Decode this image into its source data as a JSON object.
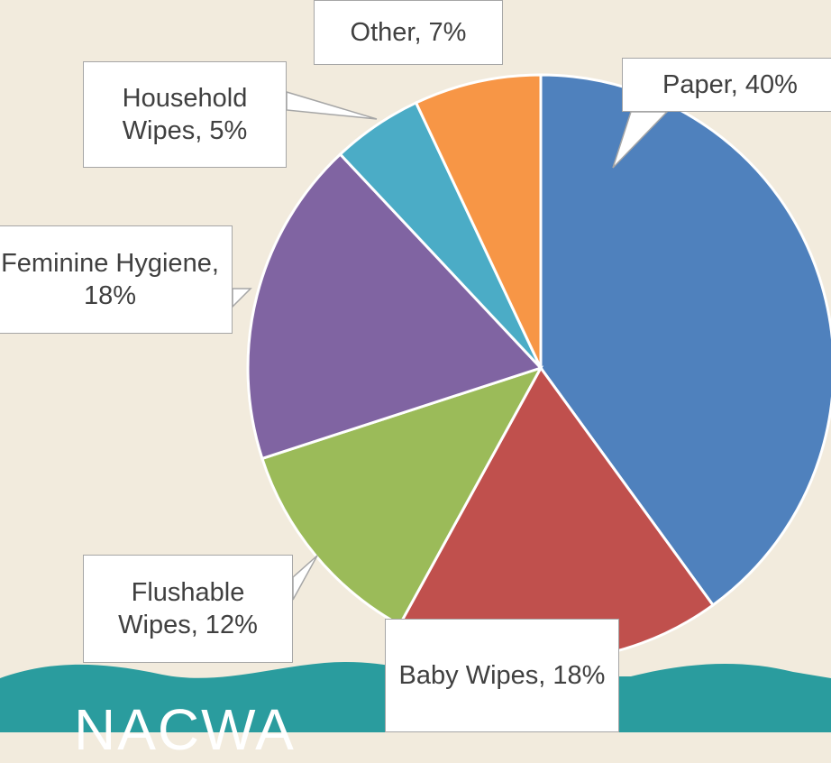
{
  "chart_data": {
    "type": "pie",
    "values": [
      40,
      18,
      12,
      18,
      5,
      7
    ],
    "value_labels": [
      "Paper, 40%",
      "Baby Wipes, 18%",
      "Flushable Wipes, 12%",
      "Feminine Hygiene, 18%",
      "Household Wipes, 5%",
      "Other, 7%"
    ],
    "colors": [
      "#4f81bd",
      "#c0504d",
      "#9bbb59",
      "#8064a2",
      "#4bacc6",
      "#f79646"
    ]
  },
  "footer": {
    "logo": "NACWA"
  }
}
